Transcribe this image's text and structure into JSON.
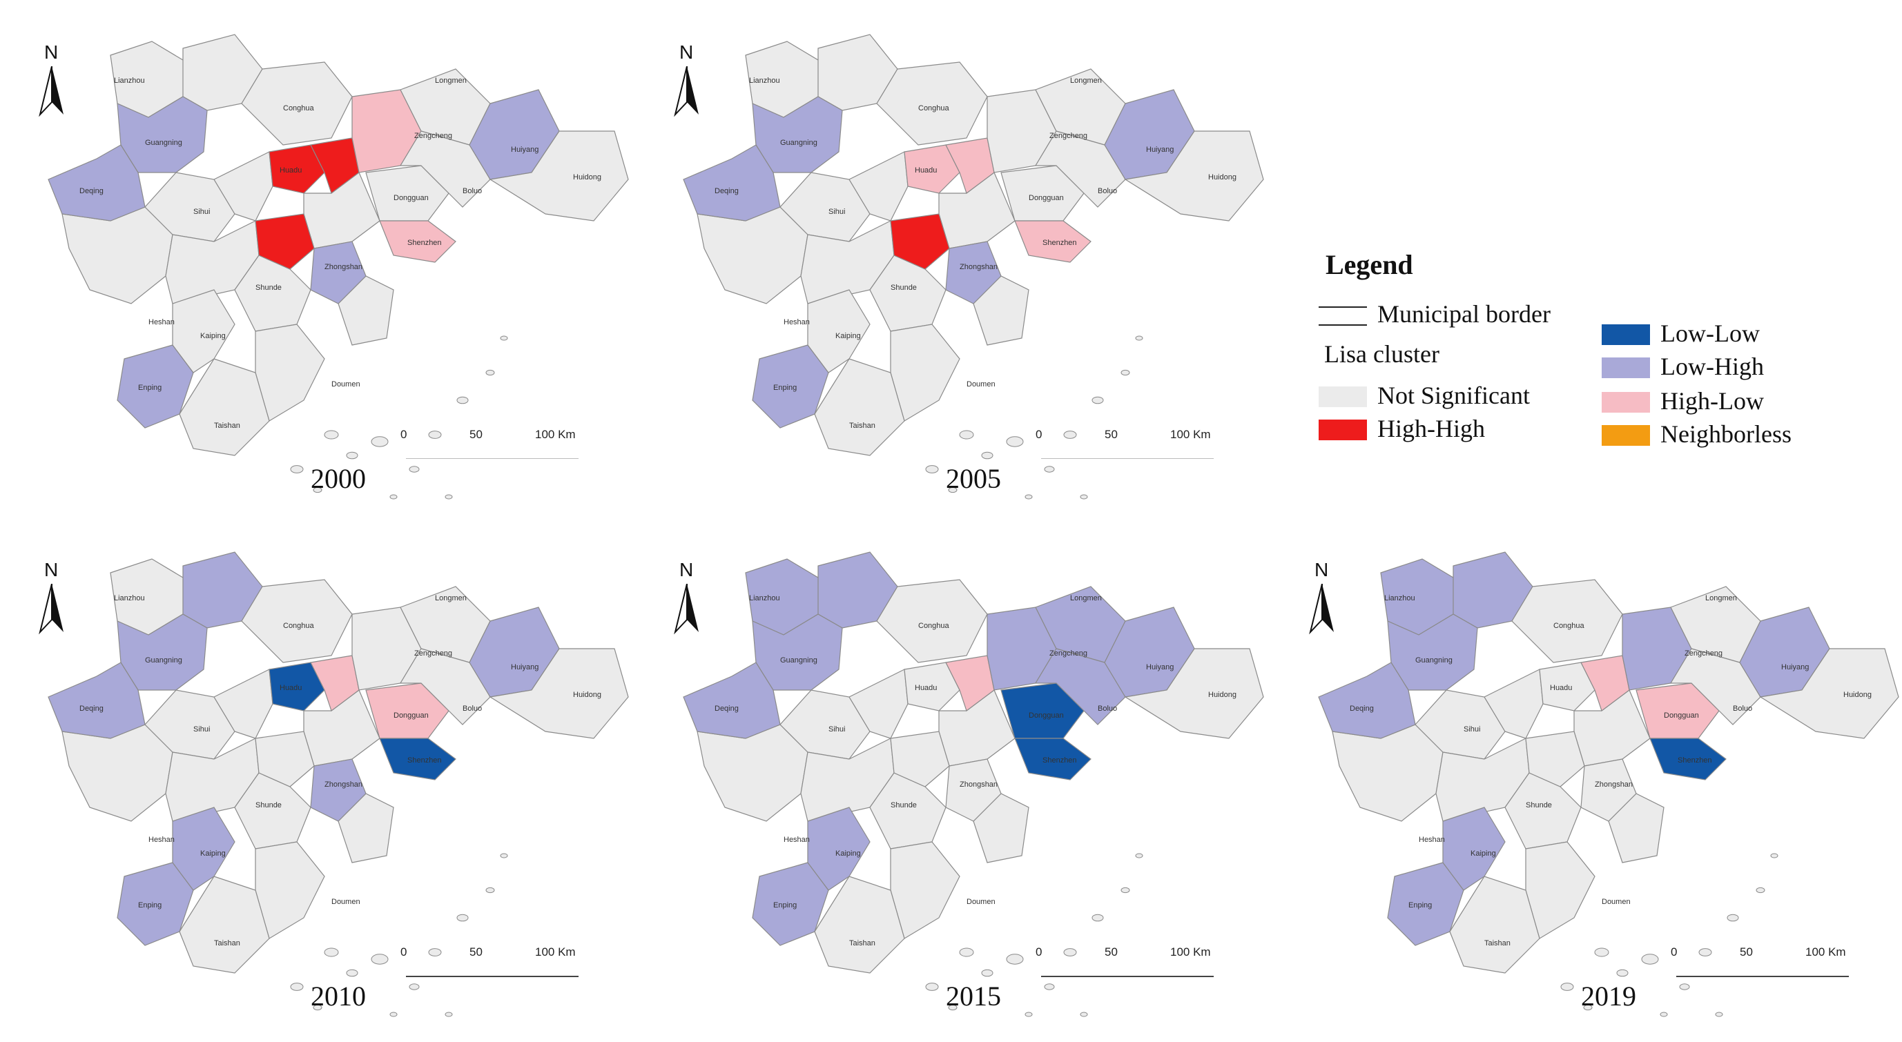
{
  "colors": {
    "not_significant": "#ebebeb",
    "high_high": "#ee1c1c",
    "low_low": "#1257a6",
    "low_high": "#a9a9d8",
    "high_low": "#f6bcc4",
    "neighborless": "#f39c12",
    "border": "#8a8a8a"
  },
  "legend": {
    "title": "Legend",
    "municipal_border": "Municipal border",
    "lisa_cluster": "Lisa cluster",
    "items_left": [
      {
        "label": "Not Significant",
        "color_key": "not_significant"
      },
      {
        "label": "High-High",
        "color_key": "high_high"
      }
    ],
    "items_right": [
      {
        "label": "Low-Low",
        "color_key": "low_low"
      },
      {
        "label": "Low-High",
        "color_key": "low_high"
      },
      {
        "label": "High-Low",
        "color_key": "high_low"
      },
      {
        "label": "Neighborless",
        "color_key": "neighborless"
      }
    ]
  },
  "north_label": "N",
  "scale": {
    "ticks": [
      "0",
      "50",
      "100 Km"
    ]
  },
  "panels": [
    {
      "year": "2000",
      "regions": {
        "lianzhou_top": "not_significant",
        "guangning": "low_high",
        "deqing": "low_high",
        "conghua": "not_significant",
        "huadu": "high_high",
        "baiyun": "high_high",
        "shunde": "high_high",
        "taishan": "not_significant",
        "kaiping": "not_significant",
        "enping": "low_high",
        "huizhou_ne": "low_high",
        "dongguan": "not_significant",
        "shenzhen": "high_low",
        "zhongshan": "low_high",
        "zengcheng": "high_low",
        "longmen": "not_significant",
        "boluo": "not_significant",
        "huidong": "not_significant",
        "yangshan": "not_significant"
      }
    },
    {
      "year": "2005",
      "regions": {
        "lianzhou_top": "not_significant",
        "guangning": "low_high",
        "deqing": "low_high",
        "conghua": "not_significant",
        "huadu": "high_low",
        "baiyun": "high_low",
        "shunde": "high_high",
        "taishan": "not_significant",
        "kaiping": "not_significant",
        "enping": "low_high",
        "huizhou_ne": "low_high",
        "dongguan": "not_significant",
        "shenzhen": "high_low",
        "zhongshan": "low_high",
        "zengcheng": "not_significant",
        "longmen": "not_significant",
        "boluo": "not_significant",
        "huidong": "not_significant",
        "yangshan": "not_significant"
      }
    },
    {
      "year": "2010",
      "regions": {
        "lianzhou_top": "not_significant",
        "guangning": "low_high",
        "deqing": "low_high",
        "conghua": "not_significant",
        "huadu": "low_low",
        "baiyun": "high_low",
        "shunde": "not_significant",
        "taishan": "not_significant",
        "kaiping": "low_high",
        "enping": "low_high",
        "huizhou_ne": "low_high",
        "dongguan": "high_low",
        "shenzhen": "low_low",
        "zhongshan": "low_high",
        "zengcheng": "not_significant",
        "longmen": "not_significant",
        "boluo": "not_significant",
        "huidong": "not_significant",
        "yangshan": "low_high"
      }
    },
    {
      "year": "2015",
      "regions": {
        "lianzhou_top": "low_high",
        "guangning": "low_high",
        "deqing": "low_high",
        "conghua": "not_significant",
        "huadu": "not_significant",
        "baiyun": "high_low",
        "shunde": "not_significant",
        "taishan": "not_significant",
        "kaiping": "low_high",
        "enping": "low_high",
        "huizhou_ne": "low_high",
        "dongguan": "low_low",
        "shenzhen": "low_low",
        "zhongshan": "not_significant",
        "zengcheng": "low_high",
        "longmen": "low_high",
        "boluo": "low_high",
        "huidong": "not_significant",
        "yangshan": "low_high"
      }
    },
    {
      "year": "2019",
      "regions": {
        "lianzhou_top": "low_high",
        "guangning": "low_high",
        "deqing": "low_high",
        "conghua": "not_significant",
        "huadu": "not_significant",
        "baiyun": "high_low",
        "shunde": "not_significant",
        "taishan": "not_significant",
        "kaiping": "low_high",
        "enping": "low_high",
        "huizhou_ne": "low_high",
        "dongguan": "high_low",
        "shenzhen": "low_low",
        "zhongshan": "not_significant",
        "zengcheng": "low_high",
        "longmen": "not_significant",
        "boluo": "not_significant",
        "huidong": "not_significant",
        "yangshan": "low_high"
      }
    }
  ]
}
